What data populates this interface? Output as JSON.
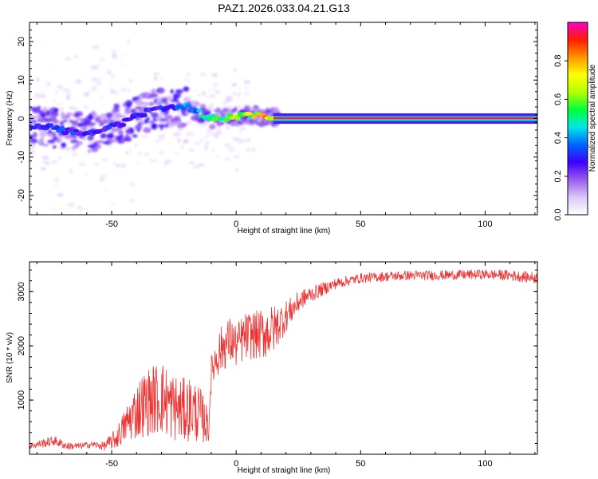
{
  "title": "PAZ1.2026.033.04.21.G13",
  "chart_data": [
    {
      "type": "heatmap",
      "xlabel": "Height of straight line (km)",
      "ylabel": "Frequency (Hz)",
      "xlim": [
        -83,
        121
      ],
      "ylim": [
        -25,
        25
      ],
      "xticks": [
        -50,
        0,
        50,
        100
      ],
      "yticks": [
        -20,
        -10,
        0,
        10,
        20
      ],
      "grid": false,
      "colorbar": {
        "label": "Normalized spectral amplitude",
        "range": [
          0,
          1
        ],
        "ticks": [
          "0.0",
          "0.2",
          "0.4",
          "0.6",
          "0.8"
        ],
        "colors": [
          "#ffffff",
          "#dcc8f8",
          "#9a5cf0",
          "#3c00ff",
          "#0064ff",
          "#00e6e6",
          "#00ff3c",
          "#b4ff00",
          "#ffff00",
          "#ff9600",
          "#ff1e00",
          "#ff00c8"
        ]
      },
      "description_points": [
        {
          "x": -75,
          "y": -2,
          "amp": 0.3
        },
        {
          "x": -70,
          "y": -3,
          "amp": 0.35
        },
        {
          "x": -60,
          "y": -4,
          "amp": 0.3
        },
        {
          "x": -45,
          "y": -1,
          "amp": 0.3
        },
        {
          "x": -35,
          "y": 2,
          "amp": 0.3
        },
        {
          "x": -20,
          "y": 3,
          "amp": 0.4
        },
        {
          "x": -10,
          "y": 0,
          "amp": 0.6
        },
        {
          "x": 5,
          "y": 1,
          "amp": 0.7
        },
        {
          "x": 20,
          "y": 0,
          "amp": 0.95
        },
        {
          "x": 60,
          "y": 0,
          "amp": 1.0
        },
        {
          "x": 120,
          "y": 0,
          "amp": 1.0
        }
      ]
    },
    {
      "type": "line",
      "xlabel": "Height of straight line (km)",
      "ylabel": "SNR (10 * v/v)",
      "xlim": [
        -83,
        121
      ],
      "ylim": [
        0,
        3550
      ],
      "xticks": [
        -50,
        0,
        50,
        100
      ],
      "yticks": [
        1000,
        2000,
        3000
      ],
      "grid": false,
      "series": [
        {
          "name": "SNR",
          "color": "#ee3333",
          "x": [
            -83,
            -78,
            -73,
            -68,
            -63,
            -58,
            -53,
            -48,
            -45,
            -42,
            -38,
            -34,
            -30,
            -26,
            -22,
            -18,
            -14,
            -11,
            -10,
            -8,
            -5,
            -2,
            0,
            3,
            6,
            9,
            12,
            15,
            18,
            22,
            26,
            30,
            35,
            40,
            50,
            60,
            70,
            80,
            90,
            100,
            110,
            121
          ],
          "y": [
            150,
            200,
            250,
            150,
            150,
            180,
            150,
            300,
            500,
            700,
            900,
            1000,
            1050,
            900,
            800,
            850,
            700,
            500,
            1500,
            1800,
            2000,
            2100,
            2000,
            2150,
            2200,
            2200,
            2250,
            2300,
            2450,
            2650,
            2850,
            2950,
            3050,
            3150,
            3250,
            3280,
            3300,
            3300,
            3310,
            3320,
            3300,
            3250
          ],
          "noise": [
            60,
            80,
            90,
            70,
            60,
            60,
            80,
            200,
            300,
            450,
            600,
            650,
            700,
            650,
            600,
            600,
            500,
            300,
            300,
            400,
            450,
            450,
            400,
            450,
            450,
            450,
            500,
            450,
            350,
            250,
            180,
            150,
            120,
            100,
            90,
            90,
            90,
            90,
            90,
            90,
            100,
            100
          ]
        }
      ]
    }
  ]
}
